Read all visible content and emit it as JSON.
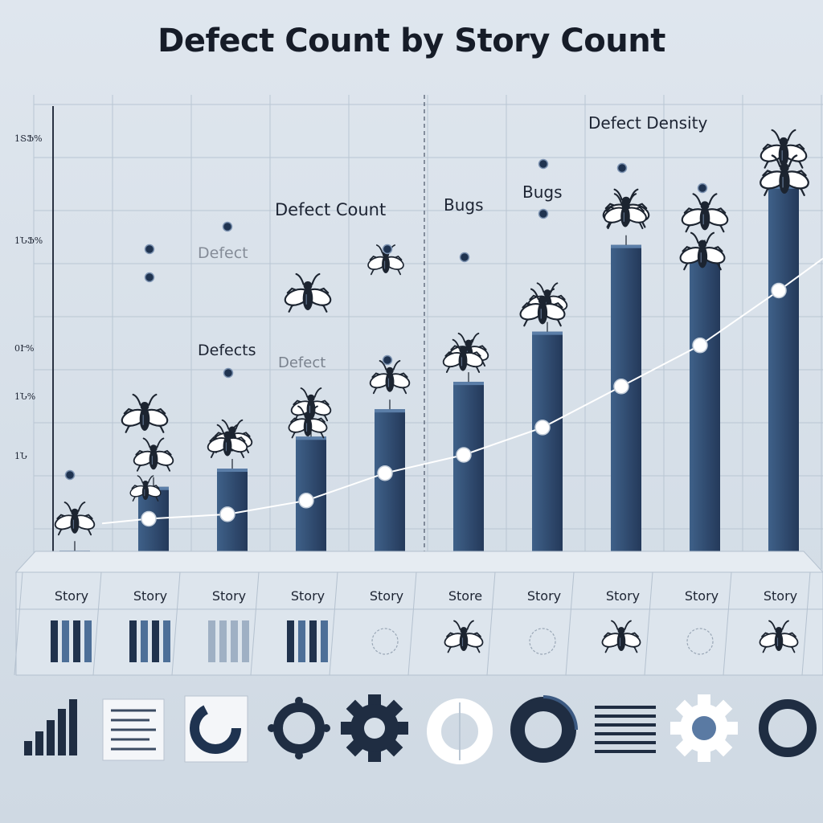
{
  "title": "Defect Count by Story Count",
  "y_tick_labels": [
    "1ՏՖ%",
    "1ՆՖ%",
    "0Ւ%",
    "1Ն%",
    "1Ն"
  ],
  "floating_labels": [
    {
      "text": "Defect",
      "tone": "faded"
    },
    {
      "text": "Defect Count",
      "tone": "dark"
    },
    {
      "text": "Defects",
      "tone": "dark"
    },
    {
      "text": "Defect",
      "tone": "faded"
    },
    {
      "text": "Bugs",
      "tone": "dark"
    },
    {
      "text": "Bugs",
      "tone": "dark"
    },
    {
      "text": "Defect Density",
      "tone": "dark"
    }
  ],
  "colors": {
    "bar": "#2e4a6e",
    "bar_light": "#4a6d96",
    "grid": "#b9c6d3",
    "line": "#ffffff",
    "bug_body": "#1c2430",
    "bug_wing": "#ffffff"
  },
  "chart_data": {
    "type": "bar",
    "title": "Defect Count by Story Count",
    "categories": [
      "Story",
      "Story",
      "Story",
      "Story",
      "Story",
      "Store",
      "Story",
      "Story",
      "Story",
      "Story"
    ],
    "series": [
      {
        "values": [
          4,
          18,
          22,
          29,
          35,
          41,
          52,
          71,
          70,
          84
        ]
      },
      {
        "values": [
          10,
          11,
          12,
          15,
          21,
          25,
          31,
          40,
          49,
          61
        ]
      }
    ],
    "ylim": [
      0,
      100
    ],
    "grid": true
  },
  "icons": [
    {
      "name": "bar-chart-icon"
    },
    {
      "name": "document-icon"
    },
    {
      "name": "pie-chart-icon"
    },
    {
      "name": "ring-icon"
    },
    {
      "name": "gear-icon"
    },
    {
      "name": "donut-icon"
    },
    {
      "name": "dark-donut-icon"
    },
    {
      "name": "list-lines-icon"
    },
    {
      "name": "gear-outline-icon"
    },
    {
      "name": "circle-icon"
    }
  ]
}
